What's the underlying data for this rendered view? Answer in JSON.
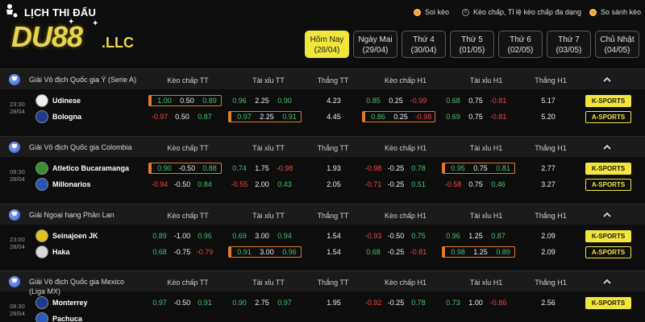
{
  "header": {
    "title": "LỊCH THI ĐẤU",
    "logo_main": "DU88",
    "logo_suffix": ".LLC",
    "options": [
      {
        "label": "Soi kèo",
        "icon": "coin-icon"
      },
      {
        "label": "Kèo chấp, Tỉ lệ kèo chấp đa dạng",
        "icon": "copyright-icon"
      },
      {
        "label": "So sánh kèo",
        "icon": "coin-icon"
      }
    ]
  },
  "day_tabs": [
    {
      "label": "Hôm Nay",
      "date": "(28/04)",
      "active": true
    },
    {
      "label": "Ngày Mai",
      "date": "(29/04)",
      "active": false
    },
    {
      "label": "Thứ 4",
      "date": "(30/04)",
      "active": false
    },
    {
      "label": "Thứ 5",
      "date": "(01/05)",
      "active": false
    },
    {
      "label": "Thứ 6",
      "date": "(02/05)",
      "active": false
    },
    {
      "label": "Thứ 7",
      "date": "(03/05)",
      "active": false
    },
    {
      "label": "Chủ Nhật",
      "date": "(04/05)",
      "active": false
    }
  ],
  "columns": [
    "Kèo chấp TT",
    "Tài xỉu TT",
    "Thắng TT",
    "Kèo chấp H1",
    "Tài xỉu H1",
    "Thắng H1"
  ],
  "leagues": [
    {
      "name": "Giải Vô địch Quốc gia Ý (Serie A)",
      "time": "23:30",
      "date": "28/04",
      "teams": [
        {
          "name": "Udinese",
          "hc": [
            "1.00",
            "0.50",
            "0.89"
          ],
          "ou": [
            "0.96",
            "2.25",
            "0.90"
          ],
          "win": "4.23",
          "hc1": [
            "0.85",
            "0.25",
            "-0.99"
          ],
          "ou1": [
            "0.68",
            "0.75",
            "-0.81"
          ],
          "win1": "5.17",
          "badge": "K-SPORTS"
        },
        {
          "name": "Bologna",
          "hc": [
            "-0.97",
            "0.50",
            "0.87"
          ],
          "ou": [
            "0.97",
            "2.25",
            "0.91"
          ],
          "win": "4.45",
          "hc1": [
            "0.86",
            "0.25",
            "-0.98"
          ],
          "ou1": [
            "0.69",
            "0.75",
            "-0.81"
          ],
          "win1": "5.20",
          "badge": "A-SPORTS"
        }
      ]
    },
    {
      "name": "Giải Vô địch Quốc gia Colombia",
      "time": "08:30",
      "date": "28/04",
      "teams": [
        {
          "name": "Atletico Bucaramanga",
          "hc": [
            "0.90",
            "-0.50",
            "0.88"
          ],
          "ou": [
            "0.74",
            "1.75",
            "-0.98"
          ],
          "win": "1.93",
          "hc1": [
            "-0.98",
            "-0.25",
            "0.78"
          ],
          "ou1": [
            "0.95",
            "0.75",
            "0.81"
          ],
          "win1": "2.77",
          "badge": "K-SPORTS"
        },
        {
          "name": "Millonarios",
          "hc": [
            "-0.94",
            "-0.50",
            "0.84"
          ],
          "ou": [
            "-0.55",
            "2.00",
            "0.43"
          ],
          "win": "2.05",
          "hc1": [
            "-0.71",
            "-0.25",
            "0.51"
          ],
          "ou1": [
            "-0.58",
            "0.75",
            "0.46"
          ],
          "win1": "3.27",
          "badge": "A-SPORTS"
        }
      ]
    },
    {
      "name": "Giải Ngoại hạng Phần Lan",
      "time": "23:00",
      "date": "28/04",
      "teams": [
        {
          "name": "Seinajoen JK",
          "hc": [
            "0.89",
            "-1.00",
            "0.96"
          ],
          "ou": [
            "0.69",
            "3.00",
            "0.94"
          ],
          "win": "1.54",
          "hc1": [
            "-0.93",
            "-0.50",
            "0.75"
          ],
          "ou1": [
            "0.96",
            "1.25",
            "0.87"
          ],
          "win1": "2.09",
          "badge": "K-SPORTS"
        },
        {
          "name": "Haka",
          "hc": [
            "0.68",
            "-0.75",
            "-0.79"
          ],
          "ou": [
            "0.91",
            "3.00",
            "0.96"
          ],
          "win": "1.54",
          "hc1": [
            "0.68",
            "-0.25",
            "-0.81"
          ],
          "ou1": [
            "0.98",
            "1.25",
            "0.89"
          ],
          "win1": "2.09",
          "badge": "A-SPORTS"
        }
      ]
    },
    {
      "name": "Giải Vô địch Quốc gia Mexico (Liga MX)",
      "time": "08:30",
      "date": "28/04",
      "teams": [
        {
          "name": "Monterrey",
          "hc": [
            "0.97",
            "-0.50",
            "0.91"
          ],
          "ou": [
            "0.90",
            "2.75",
            "0.97"
          ],
          "win": "1.95",
          "hc1": [
            "-0.92",
            "-0.25",
            "0.78"
          ],
          "ou1": [
            "0.73",
            "1.00",
            "-0.86"
          ],
          "win1": "2.56",
          "badge": "K-SPORTS"
        },
        {
          "name": "Pachuca",
          "hc": [
            "",
            "",
            ""
          ],
          "ou": [
            "",
            "",
            ""
          ],
          "win": "",
          "hc1": [
            "",
            "",
            ""
          ],
          "ou1": [
            "",
            "",
            ""
          ],
          "win1": "",
          "badge": ""
        }
      ]
    }
  ],
  "colors": {
    "accent": "#f2e53b",
    "positive": "#4ac36e",
    "negative": "#ea4a4a",
    "highlight_border": "#e07b2c"
  }
}
